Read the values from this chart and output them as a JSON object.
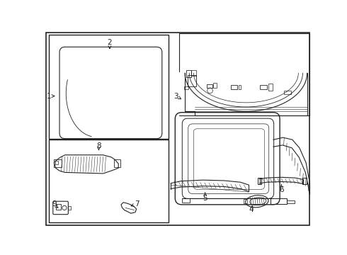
{
  "bg": "#ffffff",
  "lc": "#222222",
  "lw": 0.8,
  "figsize": [
    4.9,
    3.6
  ],
  "dpi": 100
}
